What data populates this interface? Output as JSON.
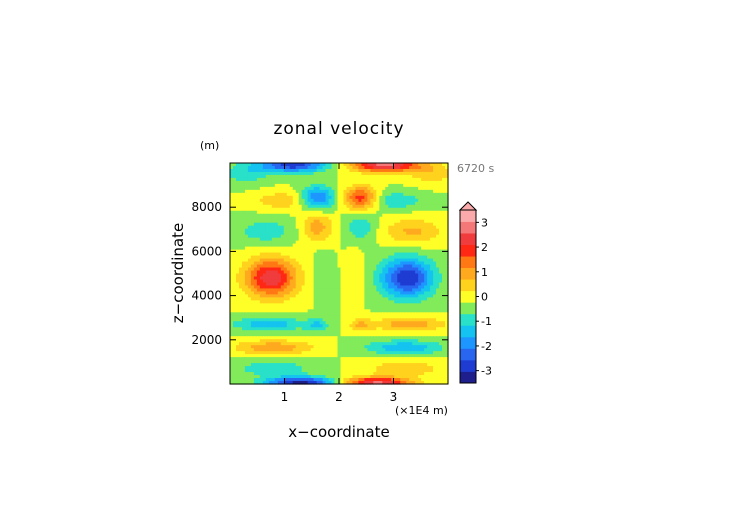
{
  "chart_data": {
    "type": "heatmap",
    "title": "zonal velocity",
    "time_label": "6720 s",
    "ylabel": "z−coordinate",
    "yunit": "(m)",
    "xlabel": "x−coordinate",
    "xunit": "(×1E4 m)",
    "xlim": [
      0,
      4
    ],
    "ylim": [
      0,
      10000
    ],
    "x_ticks": [
      "1",
      "2",
      "3"
    ],
    "x_tick_values": [
      1,
      2,
      3
    ],
    "y_ticks": [
      "2000",
      "4000",
      "6000",
      "8000"
    ],
    "y_tick_values": [
      2000,
      4000,
      6000,
      8000
    ],
    "colorbar": {
      "levels": [
        -3.5,
        -3,
        -2.5,
        -2,
        -1.5,
        -1,
        -0.5,
        0,
        0.5,
        1,
        1.5,
        2,
        2.5,
        3,
        3.5
      ],
      "colors": [
        "#1e1e8c",
        "#1e3cd2",
        "#2866f0",
        "#1e96ff",
        "#14c3f0",
        "#28e1c8",
        "#82eb5a",
        "#ffff28",
        "#ffd21e",
        "#ffaa1e",
        "#ff7814",
        "#ff2814",
        "#f03c3c",
        "#f57878",
        "#faaaaa"
      ],
      "tick_labels": [
        "-3",
        "-2",
        "-1",
        "0",
        "1",
        "2",
        "3"
      ],
      "tick_values": [
        -3,
        -2,
        -1,
        0,
        1,
        2,
        3
      ],
      "extend": "max"
    },
    "features": [
      {
        "x": 0.75,
        "z": 4800,
        "sx": 0.33,
        "sz": 620,
        "v": 2.9
      },
      {
        "x": 3.25,
        "z": 4800,
        "sx": 0.33,
        "sz": 620,
        "v": -3.0
      },
      {
        "x": 0.65,
        "z": 6900,
        "sx": 0.38,
        "sz": 420,
        "v": -0.8
      },
      {
        "x": 3.35,
        "z": 6900,
        "sx": 0.38,
        "sz": 420,
        "v": 1.1
      },
      {
        "x": 1.6,
        "z": 7100,
        "sx": 0.2,
        "sz": 500,
        "v": 1.3
      },
      {
        "x": 2.4,
        "z": 7100,
        "sx": 0.2,
        "sz": 500,
        "v": -0.9
      },
      {
        "x": 1.6,
        "z": 8400,
        "sx": 0.22,
        "sz": 380,
        "v": -2.2
      },
      {
        "x": 2.4,
        "z": 8400,
        "sx": 0.22,
        "sz": 380,
        "v": 2.4
      },
      {
        "x": 1.0,
        "z": 8300,
        "sx": 0.4,
        "sz": 300,
        "v": 0.9
      },
      {
        "x": 3.0,
        "z": 8300,
        "sx": 0.4,
        "sz": 300,
        "v": -0.9
      },
      {
        "x": 1.15,
        "z": 9900,
        "sx": 0.45,
        "sz": 220,
        "v": -2.8
      },
      {
        "x": 2.85,
        "z": 9900,
        "sx": 0.45,
        "sz": 220,
        "v": 3.2
      },
      {
        "x": 0.3,
        "z": 9500,
        "sx": 0.3,
        "sz": 350,
        "v": -0.8
      },
      {
        "x": 3.7,
        "z": 9500,
        "sx": 0.3,
        "sz": 350,
        "v": 0.8
      },
      {
        "x": 0.7,
        "z": 2700,
        "sx": 0.45,
        "sz": 220,
        "v": -1.4
      },
      {
        "x": 3.3,
        "z": 2700,
        "sx": 0.45,
        "sz": 220,
        "v": 1.4
      },
      {
        "x": 1.6,
        "z": 2650,
        "sx": 0.15,
        "sz": 220,
        "v": -1.0
      },
      {
        "x": 2.4,
        "z": 2650,
        "sx": 0.15,
        "sz": 220,
        "v": 1.0
      },
      {
        "x": 0.8,
        "z": 1650,
        "sx": 0.5,
        "sz": 230,
        "v": 1.4
      },
      {
        "x": 3.2,
        "z": 1650,
        "sx": 0.5,
        "sz": 230,
        "v": -1.4
      },
      {
        "x": 0.8,
        "z": 700,
        "sx": 0.5,
        "sz": 240,
        "v": -0.9
      },
      {
        "x": 3.2,
        "z": 700,
        "sx": 0.5,
        "sz": 240,
        "v": 0.9
      },
      {
        "x": 1.3,
        "z": 60,
        "sx": 0.45,
        "sz": 180,
        "v": -3.2
      },
      {
        "x": 2.7,
        "z": 60,
        "sx": 0.45,
        "sz": 180,
        "v": 3.1
      },
      {
        "x": 1.7,
        "z": 5000,
        "sx": 0.12,
        "sz": 800,
        "v": -0.4
      },
      {
        "x": 2.3,
        "z": 5000,
        "sx": 0.12,
        "sz": 800,
        "v": 0.4
      }
    ]
  }
}
